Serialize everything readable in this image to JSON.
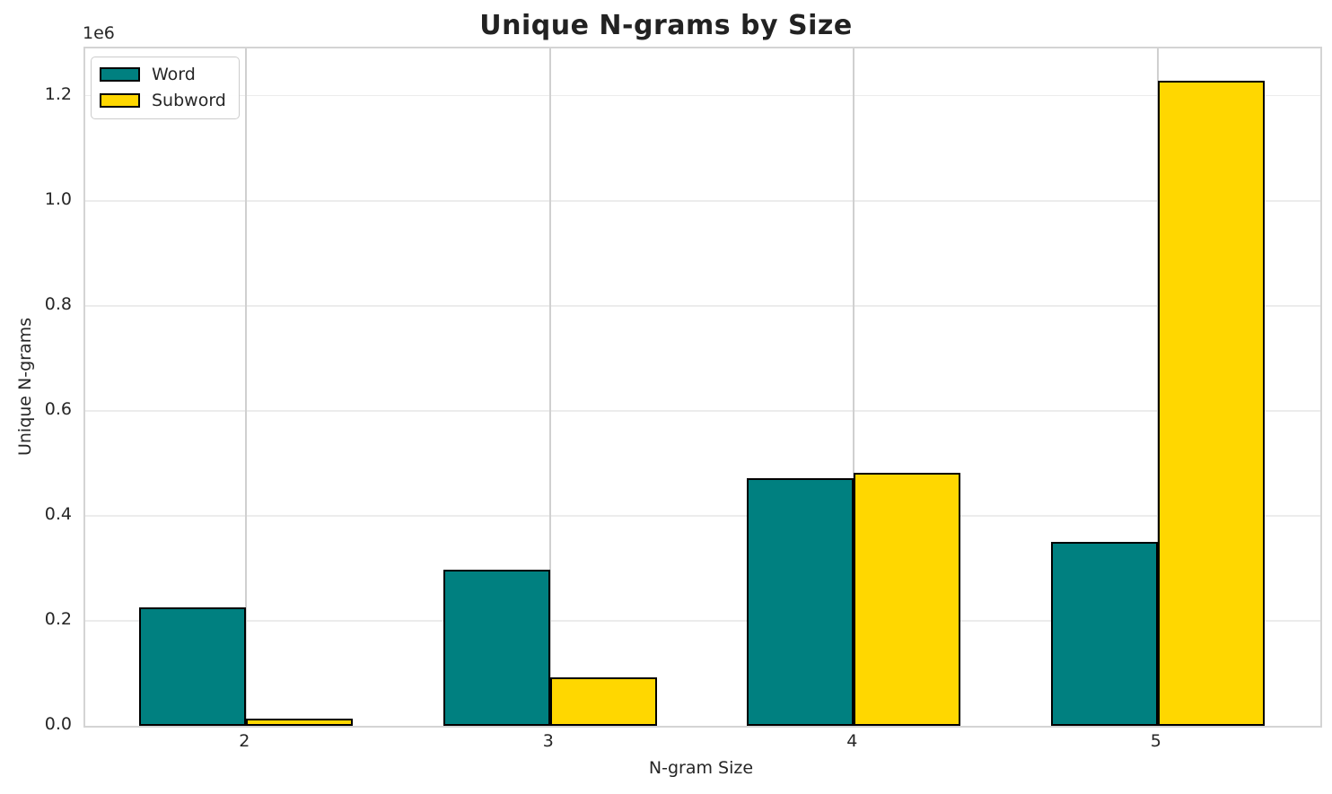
{
  "figure": {
    "background": "#ffffff"
  },
  "chart_data": {
    "type": "bar",
    "title": "Unique N-grams by Size",
    "xlabel": "N-gram Size",
    "ylabel": "Unique N-grams",
    "y_offset_text": "1e6",
    "categories": [
      "2",
      "3",
      "4",
      "5"
    ],
    "series": [
      {
        "name": "Word",
        "color": "#008080",
        "edge_color": "#000000",
        "values": [
          225000,
          297000,
          471000,
          351000
        ]
      },
      {
        "name": "Subword",
        "color": "#FFD700",
        "edge_color": "#000000",
        "values": [
          13000,
          92000,
          482000,
          1228000
        ]
      }
    ],
    "ylim": [
      0,
      1290000
    ],
    "yticks": [
      {
        "value": 0,
        "label": "0.0"
      },
      {
        "value": 200000,
        "label": "0.2"
      },
      {
        "value": 400000,
        "label": "0.4"
      },
      {
        "value": 600000,
        "label": "0.6"
      },
      {
        "value": 800000,
        "label": "0.8"
      },
      {
        "value": 1000000,
        "label": "1.0"
      },
      {
        "value": 1200000,
        "label": "1.2"
      }
    ],
    "grid": true,
    "legend_position": "upper-left"
  }
}
